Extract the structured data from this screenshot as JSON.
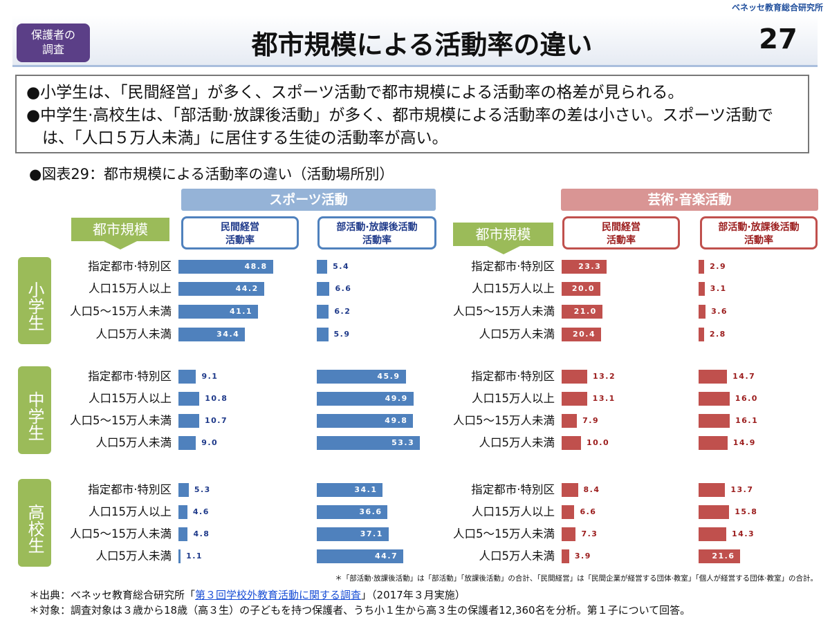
{
  "header": {
    "brand": "ベネッセ教育総合研究所",
    "badge": [
      "保護者の",
      "調査"
    ],
    "title": "都市規模による活動率の違い",
    "page": "27"
  },
  "summary": [
    "●小学生は、「民間経営」が多く、スポーツ活動で都市規模による活動率の格差が見られる。",
    "●中学生·高校生は、「部活動·放課後活動」が多く、都市規模による活動率の差は小さい。スポーツ活動では、「人口５万人未満」に居住する生徒の活動率が高い。"
  ],
  "figure_title": "●図表29：都市規模による活動率の違い（活動場所別）",
  "chart_data": [
    {
      "type": "bar",
      "title": "スポーツ活動",
      "color": "#4f81bd",
      "label_color": "#1f3a8a",
      "header_color": "#95b3d7",
      "border_color": "#4f81bd",
      "scale_label": "都市規模",
      "categories": [
        "指定都市·特別区",
        "人口15万人以上",
        "人口5～15万人未満",
        "人口5万人未満"
      ],
      "groups": [
        "小学生",
        "中学生",
        "高校生"
      ],
      "panels": [
        {
          "title": [
            "民間経営",
            "活動率"
          ],
          "xlim": [
            0,
            60
          ],
          "values": [
            [
              48.8,
              44.2,
              41.1,
              34.4
            ],
            [
              9.1,
              10.8,
              10.7,
              9.0
            ],
            [
              5.3,
              4.6,
              4.8,
              1.1
            ]
          ],
          "value_labels": [
            [
              "48.8",
              "44.2",
              "41.1",
              "34.4"
            ],
            [
              "9.1",
              "10.8",
              "10.7",
              "9.0"
            ],
            [
              "5.3",
              "4.6",
              "4.8",
              "1.1"
            ]
          ]
        },
        {
          "title": [
            "部活動·放課後活動",
            "活動率"
          ],
          "xlim": [
            0,
            60
          ],
          "values": [
            [
              5.4,
              6.6,
              6.2,
              5.9
            ],
            [
              45.9,
              49.9,
              49.8,
              53.3
            ],
            [
              34.1,
              36.6,
              37.1,
              44.7
            ]
          ],
          "value_labels": [
            [
              "5.4",
              "6.6",
              "6.2",
              "5.9"
            ],
            [
              "45.9",
              "49.9",
              "49.8",
              "53.3"
            ],
            [
              "34.1",
              "36.6",
              "37.1",
              "44.7"
            ]
          ]
        }
      ]
    },
    {
      "type": "bar",
      "title": "芸術·音楽活動",
      "color": "#c0504d",
      "label_color": "#9b1c1c",
      "header_color": "#d99594",
      "border_color": "#c0504d",
      "scale_label": "都市規模",
      "categories": [
        "指定都市·特別区",
        "人口15万人以上",
        "人口5～15万人未満",
        "人口5万人未満"
      ],
      "panels": [
        {
          "title": [
            "民間経営",
            "活動率"
          ],
          "xlim": [
            0,
            60
          ],
          "values": [
            [
              23.3,
              20.0,
              21.0,
              20.4
            ],
            [
              13.2,
              13.1,
              7.9,
              10.0
            ],
            [
              8.4,
              6.6,
              7.3,
              3.9
            ]
          ],
          "value_labels": [
            [
              "23.3",
              "20.0",
              "21.0",
              "20.4"
            ],
            [
              "13.2",
              "13.1",
              "7.9",
              "10.0"
            ],
            [
              "8.4",
              "6.6",
              "7.3",
              "3.9"
            ]
          ]
        },
        {
          "title": [
            "部活動·放課後活動",
            "活動率"
          ],
          "xlim": [
            0,
            60
          ],
          "values": [
            [
              2.9,
              3.1,
              3.6,
              2.8
            ],
            [
              14.7,
              16.0,
              16.1,
              14.9
            ],
            [
              13.7,
              15.8,
              14.3,
              21.6
            ]
          ],
          "value_labels": [
            [
              "2.9",
              "3.1",
              "3.6",
              "2.8"
            ],
            [
              "14.7",
              "16.0",
              "16.1",
              "14.9"
            ],
            [
              "13.7",
              "15.8",
              "14.3",
              "21.6"
            ]
          ]
        }
      ]
    }
  ],
  "footer": {
    "note": "＊「部活動·放課後活動」は「部活動」「放課後活動」の合計、「民間経営」は「民間企業が経営する団体·教室」「個人が経営する団体·教室」の合計。",
    "source_prefix": "＊出典：ベネッセ教育総合研究所「",
    "source_link": "第３回学校外教育活動に関する調査",
    "source_suffix": "」（2017年３月実施）",
    "target": "＊対象：調査対象は３歳から18歳（高３生）の子どもを持つ保護者、うち小１生から高３生の保護者12,360名を分析。第１子について回答。"
  }
}
